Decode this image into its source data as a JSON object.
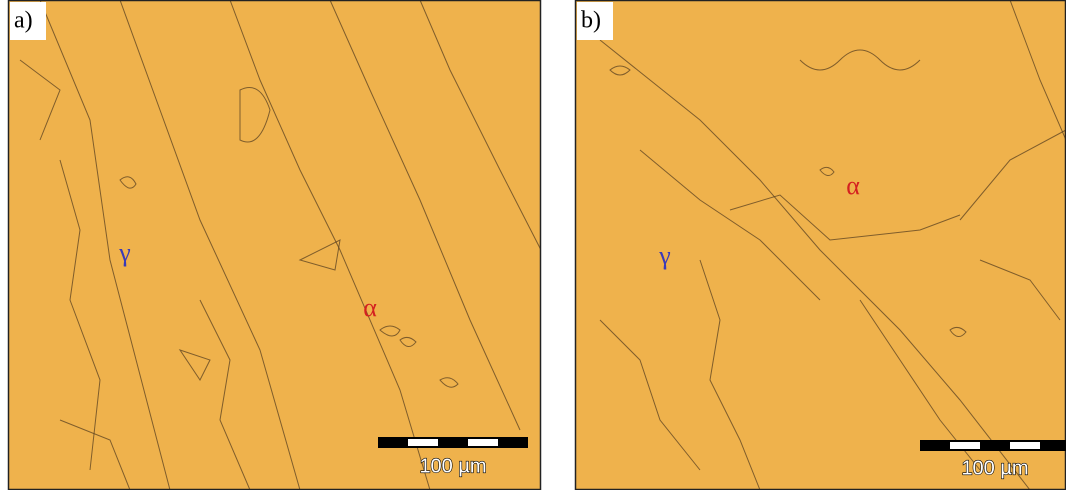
{
  "panels": [
    {
      "label": "a)",
      "phases": [
        "γ",
        "α"
      ],
      "scale_bar": "100 µm"
    },
    {
      "label": "b)",
      "phases": [
        "γ",
        "α"
      ],
      "scale_bar": "100 µm"
    }
  ]
}
